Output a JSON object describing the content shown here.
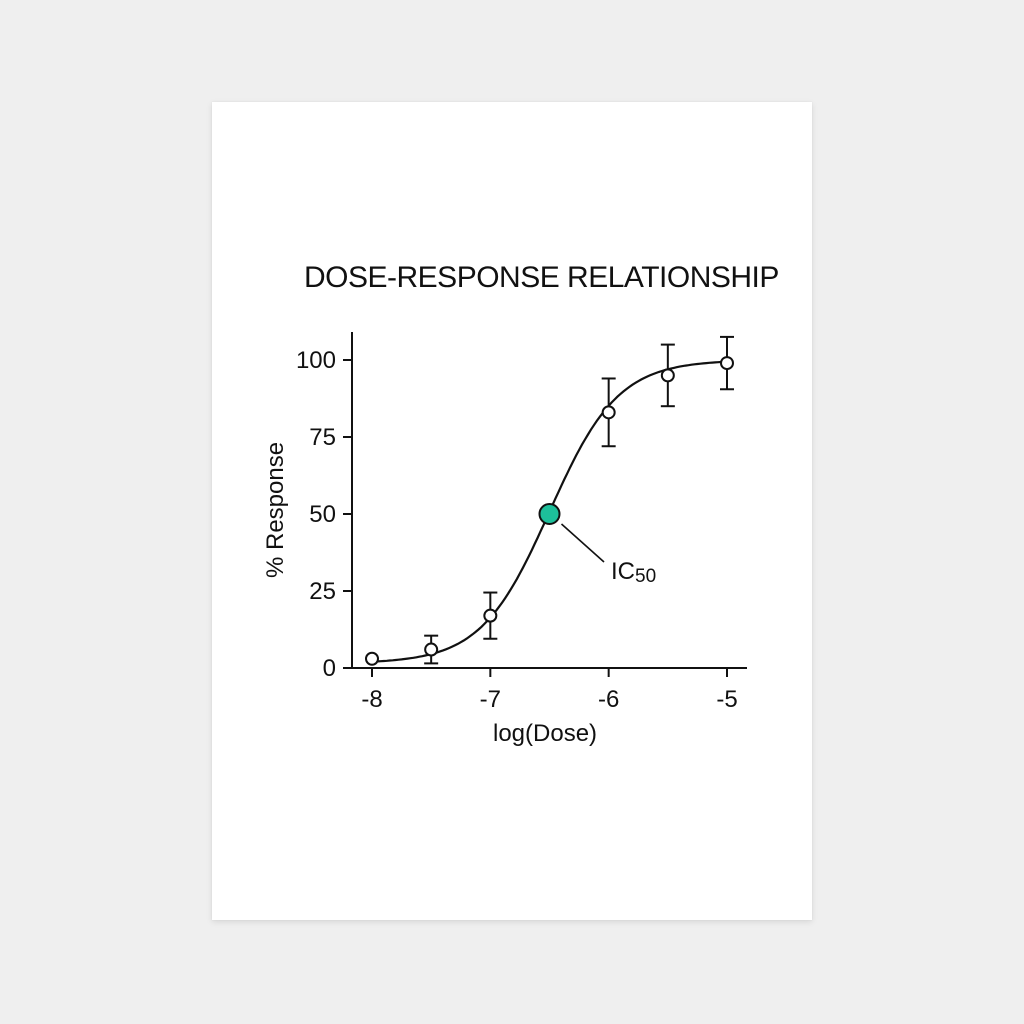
{
  "chart_data": {
    "type": "scatter",
    "title": "DOSE-RESPONSE RELATIONSHIP",
    "xlabel": "log(Dose)",
    "ylabel": "% Response",
    "xlim": [
      -8.15,
      -4.85
    ],
    "ylim": [
      0,
      110
    ],
    "x_ticks": [
      -8,
      -7,
      -6,
      -5
    ],
    "x_tick_labels": [
      "-8",
      "-7",
      "-6",
      "-5"
    ],
    "y_ticks": [
      0,
      25,
      50,
      75,
      100
    ],
    "y_tick_labels": [
      "0",
      "25",
      "50",
      "75",
      "100"
    ],
    "grid": false,
    "series": [
      {
        "points": [
          {
            "x": -8.0,
            "y": 3,
            "err": 0
          },
          {
            "x": -7.5,
            "y": 6,
            "err": 4.5
          },
          {
            "x": -7.0,
            "y": 17,
            "err": 7.5
          },
          {
            "x": -6.0,
            "y": 83,
            "err": 11
          },
          {
            "x": -5.5,
            "y": 95,
            "err": 10
          },
          {
            "x": -5.0,
            "y": 99,
            "err": 8.5
          }
        ]
      }
    ],
    "fit_curve": {
      "bottom": 1.5,
      "top": 100,
      "log_ic50": -6.5,
      "hill": 1.5
    },
    "highlight": {
      "x": -6.5,
      "y": 50,
      "color": "#1dbf9a"
    },
    "annotation": {
      "main": "IC",
      "sub": "50"
    }
  }
}
